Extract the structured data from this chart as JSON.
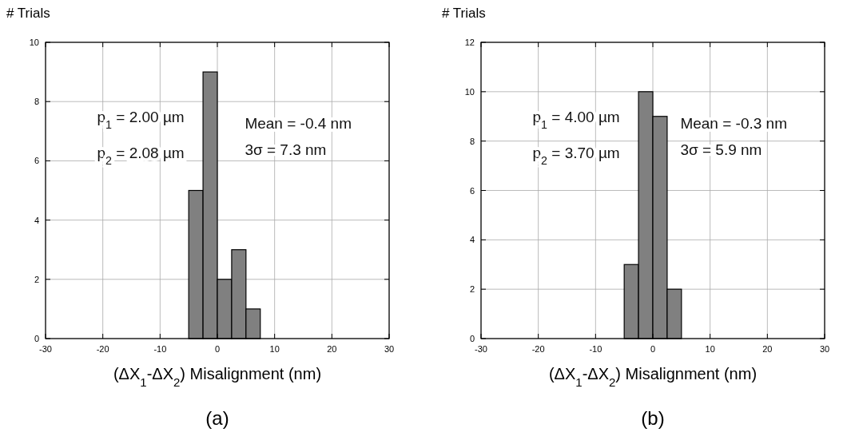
{
  "chart_data": [
    {
      "type": "histogram",
      "title": "(a)",
      "xlabel": "(ΔX$_{1}$-ΔX$_{2}$) Misalignment (nm)",
      "ylabel": "# Trials",
      "bins": [
        -5,
        -2.5,
        0,
        2.5,
        5,
        7.5
      ],
      "values": [
        5,
        9,
        2,
        3,
        1
      ],
      "color": "#808080",
      "xlim": [
        -30,
        30
      ],
      "xticks": [
        -30,
        -20,
        -10,
        0,
        10,
        20,
        30
      ],
      "ylim": [
        0,
        10
      ],
      "yticks": [
        0,
        2,
        4,
        6,
        8,
        10
      ],
      "grid": true,
      "annotations": [
        "p$_{1}$ = 2.00 µm",
        "p$_{2}$ = 2.08 µm",
        "Mean = -0.4 nm",
        "3σ = 7.3 nm"
      ]
    },
    {
      "type": "histogram",
      "title": "(b)",
      "xlabel": "(ΔX$_{1}$-ΔX$_{2}$) Misalignment (nm)",
      "ylabel": "# Trials",
      "bins": [
        -5,
        -2.5,
        0,
        2.5,
        5
      ],
      "values": [
        3,
        10,
        9,
        2
      ],
      "color": "#808080",
      "xlim": [
        -30,
        30
      ],
      "xticks": [
        -30,
        -20,
        -10,
        0,
        10,
        20,
        30
      ],
      "ylim": [
        0,
        12
      ],
      "yticks": [
        0,
        2,
        4,
        6,
        8,
        10,
        12
      ],
      "grid": true,
      "annotations": [
        "p$_{1}$ = 4.00 µm",
        "p$_{2}$ = 3.70 µm",
        "Mean = -0.3 nm",
        "3σ = 5.9 nm"
      ]
    }
  ]
}
